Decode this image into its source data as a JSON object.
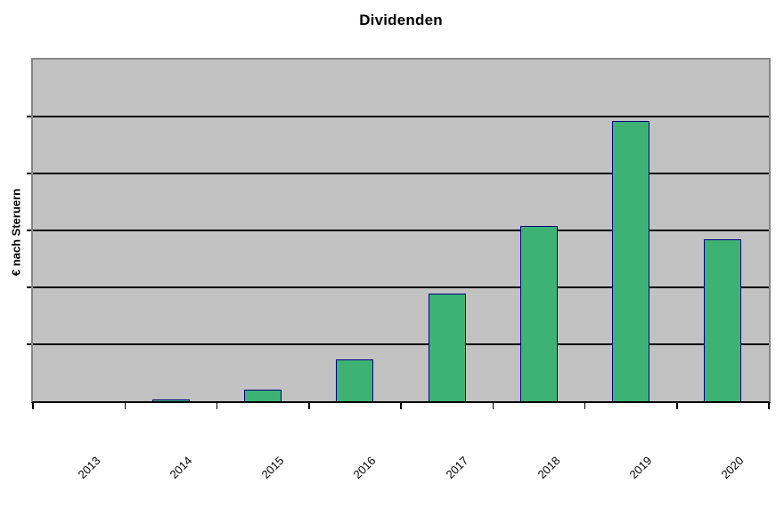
{
  "page": {
    "background": "#FFFFFF"
  },
  "chart_data": {
    "type": "bar",
    "title": "Dividenden",
    "ylabel": "€ nach Steruern",
    "xlabel": "",
    "categories": [
      "2013",
      "2014",
      "2015",
      "2016",
      "2017",
      "2018",
      "2019",
      "2020"
    ],
    "values": [
      0,
      0.03,
      0.2,
      0.73,
      1.89,
      3.08,
      4.92,
      2.84
    ],
    "ylim": [
      0,
      6
    ],
    "y_tick_labels": [],
    "gridline_count": 5,
    "legend": null,
    "layout": {
      "grid": "horizontal-only",
      "y_axis_numbers_visible": false,
      "x_label_rotation_deg": 45,
      "values_unit": "grid-divisions"
    },
    "colors": {
      "bar_fill": "#3EB273",
      "bar_border": "#000080",
      "plot_background": "#C2C2C2",
      "plot_border": "#868686",
      "gridline": "#000000",
      "axis_line": "#000000",
      "text": "#000000",
      "page_background": "#FFFFFF"
    }
  }
}
